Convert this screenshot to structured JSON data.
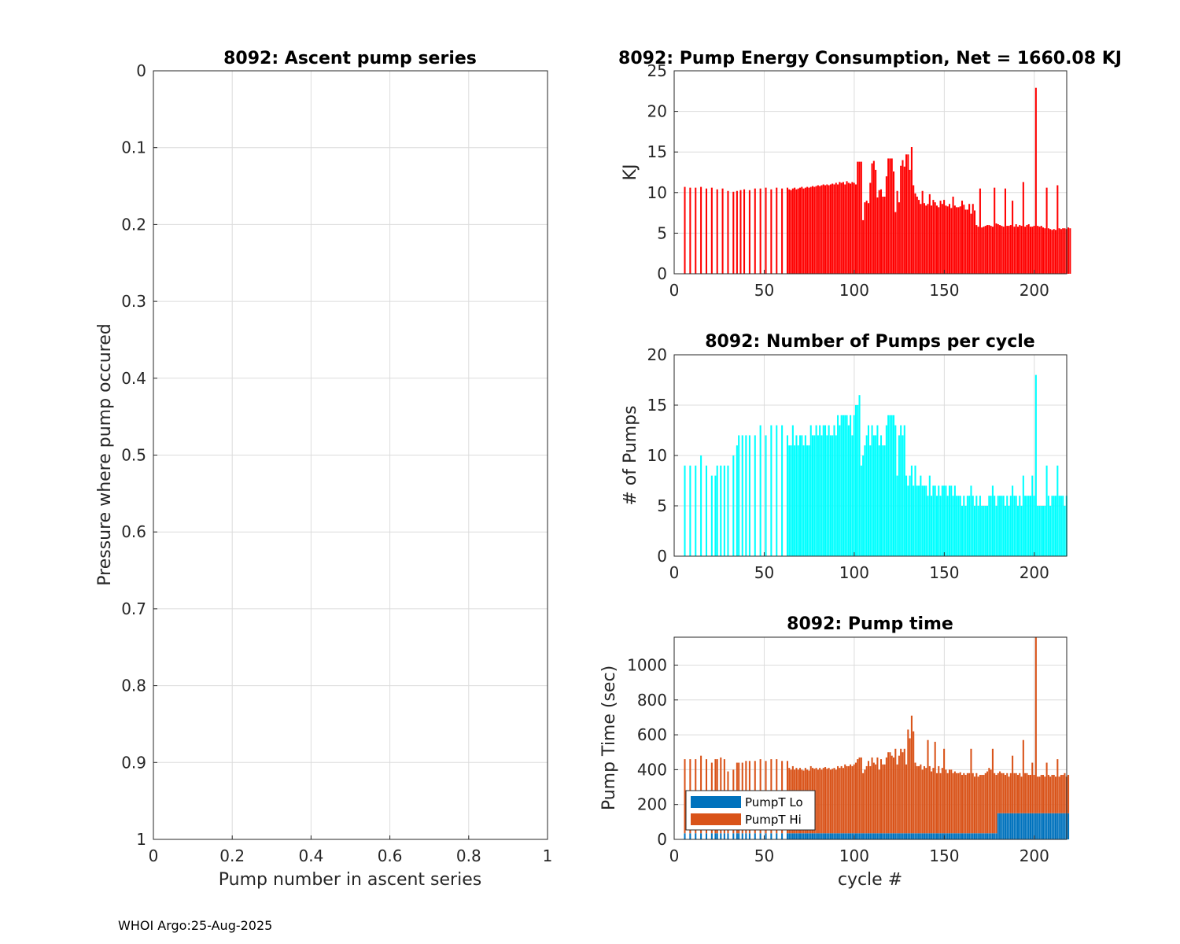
{
  "footer": "WHOI Argo:25-Aug-2025",
  "colors": {
    "energy": "#ff0000",
    "pumps": "#00ffff",
    "pump_lo": "#0072bd",
    "pump_hi": "#d95319"
  },
  "chart_data": [
    {
      "id": "ascent",
      "type": "scatter",
      "title": "8092: Ascent pump series",
      "xlabel": "Pump number in ascent series",
      "ylabel": "Pressure where pump occured",
      "xlim": [
        0,
        1
      ],
      "ylim": [
        0,
        1
      ],
      "y_reversed": true,
      "xticks": [
        "0",
        "0.2",
        "0.4",
        "0.6",
        "0.8",
        "1"
      ],
      "yticks": [
        "0",
        "0.1",
        "0.2",
        "0.3",
        "0.4",
        "0.5",
        "0.6",
        "0.7",
        "0.8",
        "0.9",
        "1"
      ],
      "grid": true,
      "points": []
    },
    {
      "id": "energy",
      "type": "bar",
      "title": "8092: Pump Energy Consumption,  Net = 1660.08 KJ",
      "xlabel": "",
      "ylabel": "KJ",
      "xlim": [
        0,
        218
      ],
      "ylim": [
        0,
        25
      ],
      "xticks": [
        "0",
        "50",
        "100",
        "150",
        "200"
      ],
      "yticks": [
        "0",
        "5",
        "10",
        "15",
        "20",
        "25"
      ],
      "grid": true,
      "sparse": [
        [
          6,
          10.7
        ],
        [
          9,
          10.6
        ],
        [
          12,
          10.6
        ],
        [
          15,
          10.7
        ],
        [
          18,
          10.5
        ],
        [
          21,
          10.6
        ],
        [
          24,
          10.4
        ],
        [
          27,
          10.5
        ],
        [
          30,
          10.2
        ],
        [
          33,
          10.1
        ],
        [
          35,
          10.2
        ],
        [
          37,
          10.3
        ],
        [
          39,
          10.4
        ],
        [
          42,
          10.3
        ],
        [
          45,
          10.5
        ],
        [
          48,
          10.5
        ],
        [
          51,
          10.6
        ],
        [
          54,
          10.4
        ],
        [
          57,
          10.6
        ],
        [
          60,
          10.5
        ],
        [
          63,
          10.6
        ]
      ],
      "x0": 64,
      "dense": [
        10.4,
        10.3,
        10.5,
        10.6,
        10.4,
        10.5,
        10.6,
        10.7,
        10.5,
        10.6,
        10.7,
        10.6,
        10.7,
        10.8,
        10.7,
        10.8,
        10.9,
        10.8,
        10.9,
        11.0,
        10.9,
        11.0,
        10.9,
        11.0,
        11.1,
        11.0,
        11.2,
        11.0,
        11.3,
        11.2,
        11.3,
        11.0,
        11.4,
        11.2,
        11.1,
        11.3,
        11.2,
        11.0,
        13.8,
        13.8,
        13.8,
        6.6,
        8.8,
        9.0,
        8.7,
        11.2,
        13.6,
        13.9,
        12.8,
        9.4,
        10.3,
        10.4,
        9.5,
        9.5,
        12.0,
        14.2,
        14.2,
        14.0,
        12.6,
        7.6,
        10.2,
        8.8,
        13.3,
        14.0,
        13.2,
        13.0,
        14.7,
        12.8,
        15.6,
        10.9,
        9.9,
        9.5,
        9.1,
        8.6,
        10.2,
        8.7,
        8.4,
        8.6,
        8.6,
        8.4,
        9.1,
        8.5,
        8.4,
        8.2,
        9.0,
        8.6,
        8.6,
        8.4,
        8.3,
        8.3,
        8.1,
        9.5,
        8.4,
        8.2,
        8.2,
        8.3,
        8.2,
        8.5,
        7.9,
        7.9,
        7.6,
        7.4,
        8.6,
        7.8,
        6.0,
        5.8,
        6.0,
        5.7,
        5.8,
        5.9,
        6.0,
        6.0,
        5.9,
        5.8,
        6.4,
        6.2,
        6.1,
        6.0,
        5.9,
        5.8,
        5.8,
        5.9,
        5.9,
        6.0,
        5.9,
        5.8,
        6.1,
        5.8,
        6.0,
        5.9,
        6.0,
        5.8,
        6.0,
        6.1,
        5.8,
        5.8,
        5.9,
        6.0,
        5.9,
        5.8,
        5.9,
        5.7,
        5.6,
        5.5,
        5.6,
        5.5,
        5.4,
        5.5,
        5.4,
        5.5,
        5.6,
        5.5,
        5.6,
        5.6,
        5.5,
        5.7,
        5.6
      ],
      "overrides": [
        [
          103,
          13.8
        ],
        [
          121,
          14.2
        ],
        [
          129,
          14.7
        ],
        [
          132,
          15.6
        ],
        [
          142,
          9.8
        ],
        [
          145,
          8.8
        ],
        [
          150,
          9.1
        ],
        [
          153,
          8.6
        ],
        [
          160,
          9.0
        ],
        [
          164,
          8.6
        ],
        [
          170,
          10.5
        ],
        [
          178,
          10.6
        ],
        [
          184,
          10.5
        ],
        [
          188,
          9.0
        ],
        [
          194,
          11.3
        ],
        [
          201,
          22.9
        ],
        [
          207,
          10.6
        ],
        [
          213,
          10.9
        ]
      ]
    },
    {
      "id": "pumps",
      "type": "bar",
      "title": "8092: Number of Pumps per cycle",
      "xlabel": "",
      "ylabel": "# of Pumps",
      "xlim": [
        0,
        218
      ],
      "ylim": [
        0,
        20
      ],
      "xticks": [
        "0",
        "50",
        "100",
        "150",
        "200"
      ],
      "yticks": [
        "0",
        "5",
        "10",
        "15",
        "20"
      ],
      "grid": true,
      "sparse": [
        [
          6,
          9
        ],
        [
          9,
          9
        ],
        [
          12,
          9
        ],
        [
          15,
          10
        ],
        [
          18,
          9
        ],
        [
          21,
          8
        ],
        [
          23,
          8
        ],
        [
          24,
          9
        ],
        [
          26,
          9
        ],
        [
          28,
          9
        ],
        [
          30,
          9
        ],
        [
          33,
          10
        ],
        [
          35,
          11
        ],
        [
          36,
          12
        ],
        [
          38,
          12
        ],
        [
          40,
          12
        ],
        [
          42,
          12
        ],
        [
          45,
          12
        ],
        [
          48,
          13
        ],
        [
          51,
          12
        ],
        [
          54,
          13
        ],
        [
          57,
          13
        ],
        [
          60,
          13
        ],
        [
          63,
          12
        ]
      ],
      "x0": 64,
      "dense": [
        11,
        11,
        13,
        11,
        12,
        11,
        12,
        12,
        11,
        12,
        11,
        11,
        13,
        12,
        12,
        13,
        12,
        13,
        12,
        13,
        13,
        12,
        13,
        12,
        12,
        13,
        12,
        14,
        13,
        14,
        12,
        14,
        14,
        13,
        14,
        12,
        14,
        15,
        16,
        11,
        9,
        10,
        11,
        12,
        13,
        11,
        13,
        12,
        12,
        13,
        11,
        12,
        11,
        11,
        13,
        14,
        14,
        13,
        12,
        13,
        8,
        12,
        13,
        12,
        13,
        8,
        7,
        8,
        9,
        7,
        9,
        7,
        7,
        8,
        7,
        7,
        7,
        6,
        7,
        6,
        7,
        7,
        6,
        7,
        6,
        7,
        7,
        7,
        6,
        7,
        7,
        6,
        7,
        6,
        6,
        6,
        5,
        6,
        5,
        6,
        6,
        5,
        6,
        5,
        6,
        5,
        6,
        5,
        5,
        5,
        5,
        6,
        6,
        7,
        6,
        5,
        6,
        6,
        6,
        6,
        5,
        6,
        5,
        6,
        6,
        6,
        6,
        5,
        6,
        5,
        6,
        6,
        6,
        6,
        6,
        6,
        6,
        6,
        5,
        5,
        5,
        5,
        5,
        5,
        6,
        5,
        6,
        6,
        6,
        6,
        6,
        6,
        6,
        5,
        6
      ],
      "overrides": [
        [
          94,
          14
        ],
        [
          96,
          14
        ],
        [
          102,
          15
        ],
        [
          103,
          16
        ],
        [
          121,
          14
        ],
        [
          122,
          14
        ],
        [
          142,
          8
        ],
        [
          150,
          7
        ],
        [
          165,
          7
        ],
        [
          177,
          7
        ],
        [
          188,
          7
        ],
        [
          194,
          8
        ],
        [
          199,
          8
        ],
        [
          201,
          18
        ],
        [
          207,
          9
        ],
        [
          213,
          9
        ]
      ]
    },
    {
      "id": "pumptime",
      "type": "bar",
      "stacked": true,
      "title": "8092: Pump time",
      "xlabel": "cycle #",
      "ylabel": "Pump Time (sec)",
      "xlim": [
        0,
        218
      ],
      "ylim": [
        0,
        1160
      ],
      "xticks": [
        "0",
        "50",
        "100",
        "150",
        "200"
      ],
      "yticks": [
        "0",
        "200",
        "400",
        "600",
        "800",
        "1000"
      ],
      "grid": true,
      "legend": [
        "PumpT Lo",
        "PumpT Hi"
      ],
      "legend_loc": "bottom-left",
      "sparse": [
        [
          6,
          460
        ],
        [
          9,
          460
        ],
        [
          12,
          460
        ],
        [
          15,
          480
        ],
        [
          18,
          460
        ],
        [
          21,
          440
        ],
        [
          23,
          460
        ],
        [
          24,
          460
        ],
        [
          26,
          470
        ],
        [
          28,
          460
        ],
        [
          30,
          390
        ],
        [
          33,
          400
        ],
        [
          35,
          440
        ],
        [
          36,
          440
        ],
        [
          38,
          440
        ],
        [
          40,
          450
        ],
        [
          42,
          450
        ],
        [
          45,
          450
        ],
        [
          48,
          460
        ],
        [
          51,
          450
        ],
        [
          54,
          460
        ],
        [
          57,
          460
        ],
        [
          60,
          450
        ],
        [
          63,
          450
        ]
      ],
      "x0": 64,
      "dense": [
        410,
        400,
        420,
        400,
        410,
        400,
        410,
        400,
        395,
        410,
        400,
        395,
        420,
        410,
        405,
        410,
        400,
        410,
        400,
        410,
        415,
        405,
        410,
        400,
        405,
        410,
        400,
        420,
        410,
        420,
        410,
        430,
        420,
        420,
        430,
        420,
        430,
        440,
        460,
        380,
        360,
        380,
        400,
        420,
        450,
        420,
        470,
        440,
        430,
        470,
        400,
        460,
        430,
        430,
        470,
        500,
        500,
        490,
        470,
        520,
        430,
        480,
        520,
        500,
        520,
        430,
        410,
        430,
        440,
        410,
        440,
        420,
        420,
        430,
        400,
        420,
        410,
        390,
        420,
        390,
        410,
        400,
        380,
        420,
        380,
        410,
        400,
        400,
        380,
        400,
        400,
        380,
        390,
        380,
        380,
        385,
        370,
        380,
        370,
        380,
        380,
        370,
        380,
        360,
        380,
        360,
        370,
        370,
        370,
        380,
        390,
        410,
        400,
        410,
        380,
        370,
        380,
        390,
        380,
        380,
        370,
        380,
        360,
        380,
        370,
        380,
        380,
        370,
        380,
        360,
        370,
        380,
        380,
        370,
        370,
        370,
        370,
        370,
        360,
        360,
        370,
        370,
        360,
        360,
        370,
        360,
        370,
        370,
        360,
        380,
        360,
        370,
        370,
        380,
        360,
        370
      ],
      "overrides": [
        [
          103,
          470
        ],
        [
          104,
          470
        ],
        [
          121,
          480
        ],
        [
          130,
          630
        ],
        [
          131,
          580
        ],
        [
          132,
          710
        ],
        [
          133,
          620
        ],
        [
          141,
          570
        ],
        [
          145,
          560
        ],
        [
          150,
          520
        ],
        [
          165,
          520
        ],
        [
          177,
          520
        ],
        [
          188,
          480
        ],
        [
          194,
          570
        ],
        [
          199,
          440
        ],
        [
          201,
          1160
        ],
        [
          207,
          440
        ],
        [
          213,
          460
        ]
      ],
      "lo": [
        [
          0,
          180,
          35
        ],
        [
          180,
          218,
          150
        ]
      ]
    }
  ]
}
